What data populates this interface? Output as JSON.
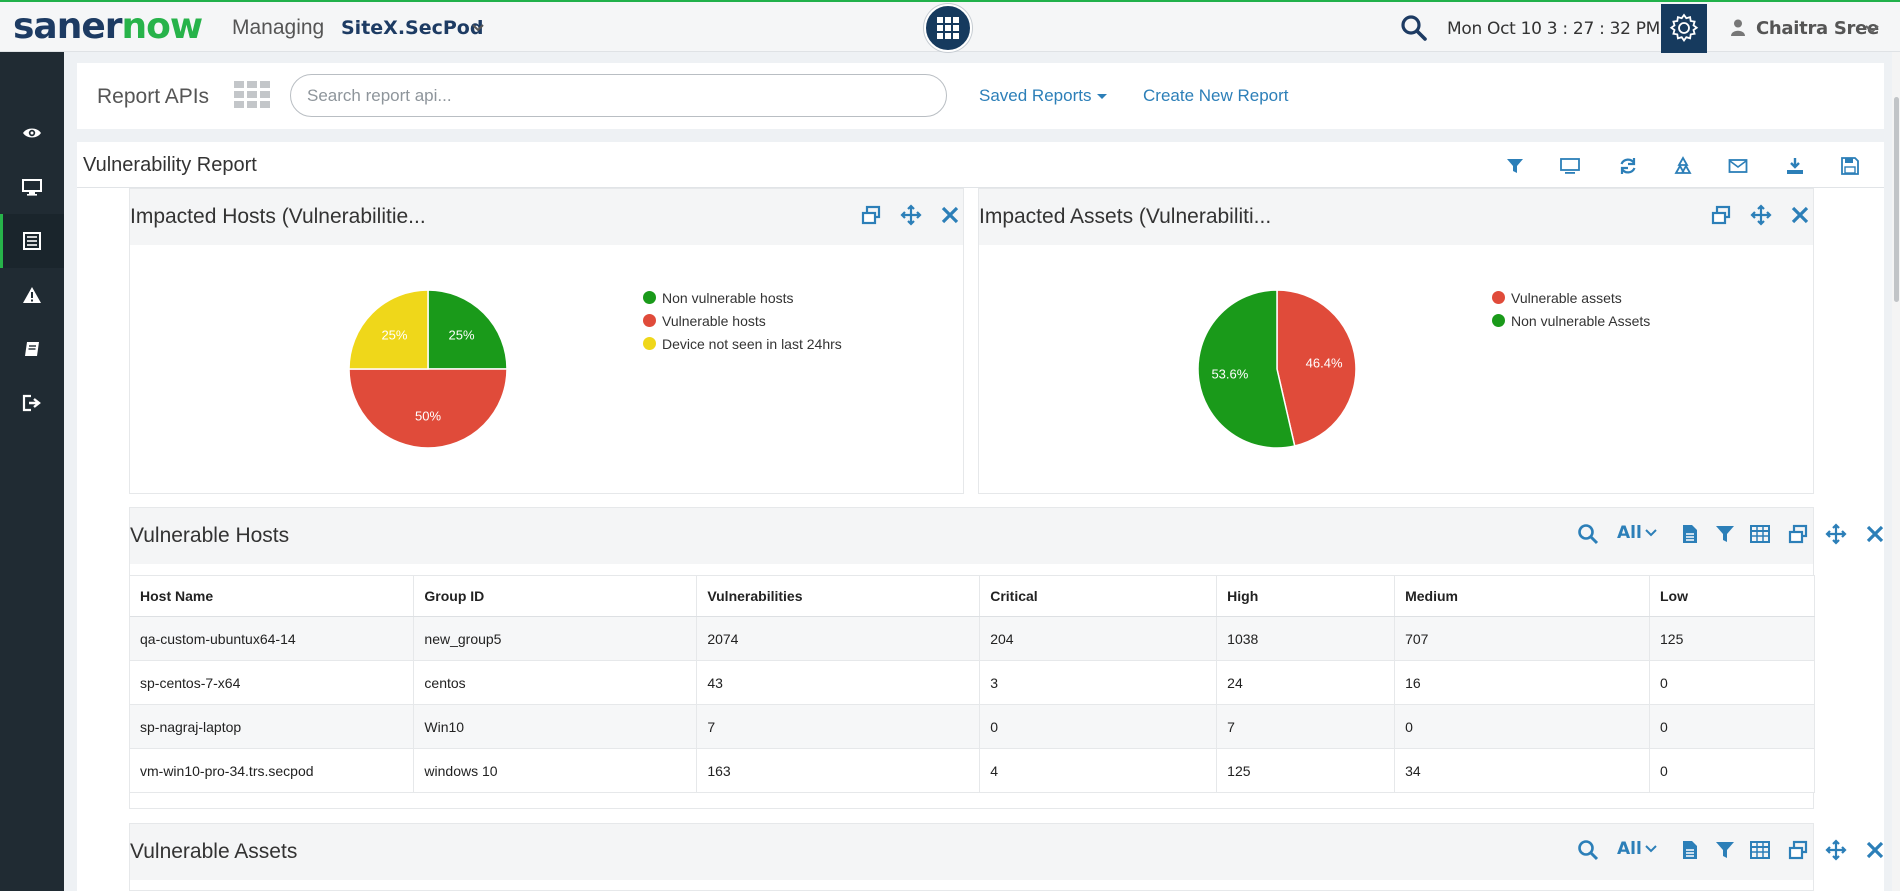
{
  "header": {
    "logo_part1": "saner",
    "logo_part2": "now",
    "managing_label": "Managing",
    "site_name": "SiteX.SecPod",
    "datetime": "Mon Oct 10   3 : 27 : 32 PM",
    "user_name": "Chaitra Sree",
    "colors": {
      "brand_dark": "#163a5e",
      "brand_green": "#27b34a"
    }
  },
  "sidebar": {
    "items": [
      {
        "icon": "eye-icon"
      },
      {
        "icon": "monitor-icon"
      },
      {
        "icon": "report-icon",
        "active": true
      },
      {
        "icon": "warning-icon"
      },
      {
        "icon": "book-icon"
      },
      {
        "icon": "logout-icon"
      }
    ]
  },
  "api_bar": {
    "title": "Report APIs",
    "search_placeholder": "Search report api...",
    "saved_reports_label": "Saved Reports",
    "create_report_label": "Create New Report"
  },
  "report": {
    "title": "Vulnerability Report",
    "toolbar_icons": [
      "filter-icon",
      "monitor-icon",
      "refresh-icon",
      "recycle-icon",
      "email-icon",
      "download-icon",
      "save-icon"
    ]
  },
  "widgets": {
    "impacted_hosts": {
      "title": "Impacted Hosts (Vulnerabilitie...",
      "chart_data": {
        "type": "pie",
        "title": "",
        "legend_placement": "right",
        "slices": [
          {
            "label": "Non vulnerable hosts",
            "value": 25,
            "display": "25%",
            "color": "#1a9a1a"
          },
          {
            "label": "Vulnerable hosts",
            "value": 50,
            "display": "50%",
            "color": "#e04b3a"
          },
          {
            "label": "Device not seen in last 24hrs",
            "value": 25,
            "display": "25%",
            "color": "#efd71a"
          }
        ]
      }
    },
    "impacted_assets": {
      "title": "Impacted Assets (Vulnerabiliti...",
      "chart_data": {
        "type": "pie",
        "title": "",
        "legend_placement": "right",
        "slices": [
          {
            "label": "Vulnerable assets",
            "value": 46.4,
            "display": "46.4%",
            "color": "#e04b3a"
          },
          {
            "label": "Non vulnerable Assets",
            "value": 53.6,
            "display": "53.6%",
            "color": "#1a9a1a"
          }
        ]
      }
    },
    "vulnerable_hosts": {
      "title": "Vulnerable Hosts",
      "filter_label": "All",
      "columns": [
        "Host Name",
        "Group ID",
        "Vulnerabilities",
        "Critical",
        "High",
        "Medium",
        "Low"
      ],
      "rows": [
        [
          "qa-custom-ubuntux64-14",
          "new_group5",
          "2074",
          "204",
          "1038",
          "707",
          "125"
        ],
        [
          "sp-centos-7-x64",
          "centos",
          "43",
          "3",
          "24",
          "16",
          "0"
        ],
        [
          "sp-nagraj-laptop",
          "Win10",
          "7",
          "0",
          "7",
          "0",
          "0"
        ],
        [
          "vm-win10-pro-34.trs.secpod",
          "windows 10",
          "163",
          "4",
          "125",
          "34",
          "0"
        ]
      ]
    },
    "vulnerable_assets": {
      "title": "Vulnerable Assets",
      "filter_label": "All"
    }
  }
}
